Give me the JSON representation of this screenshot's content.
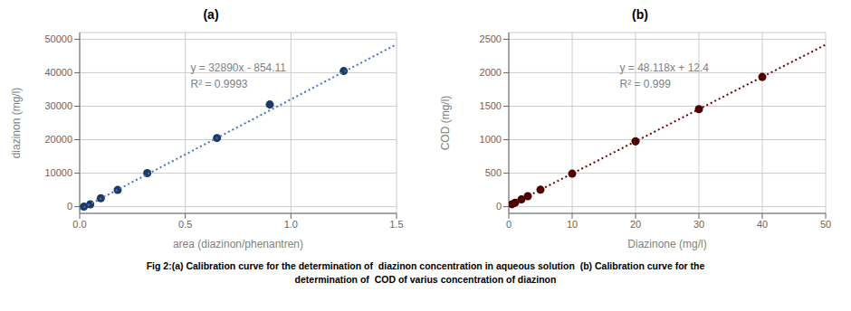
{
  "chart_data": [
    {
      "type": "scatter",
      "title": "(a)",
      "x_label": "area (diazinon/phenantren)",
      "y_label": "diazinon (mg/l)",
      "series": [
        {
          "type": "scatter",
          "color": "#1F3864",
          "marker": "circle",
          "x": [
            0.02,
            0.05,
            0.1,
            0.18,
            0.32,
            0.65,
            0.9,
            1.25
          ],
          "values": [
            0,
            700,
            2500,
            5000,
            10000,
            20500,
            30500,
            40500
          ]
        },
        {
          "type": "line",
          "line_style": "dotted",
          "color": "#4472C4",
          "x": [
            0,
            1.5
          ],
          "values": [
            -854.11,
            48480.89
          ]
        }
      ],
      "annotations": [
        "y = 32890x - 854.11",
        "R² = 0.9993"
      ],
      "xlim": [
        0,
        1.5
      ],
      "ylim": [
        -2000,
        52000
      ],
      "xticks": [
        {
          "value": 0,
          "label": "0.0"
        },
        0.5,
        {
          "value": 1,
          "label": "1.0"
        },
        1.5
      ],
      "yticks": [
        0,
        10000,
        20000,
        30000,
        40000,
        50000
      ],
      "grid": true
    },
    {
      "type": "scatter",
      "title": "(b)",
      "x_label": "Diazinone (mg/l)",
      "y_label": "COD (mg/l)",
      "series": [
        {
          "type": "scatter",
          "color": "#4B0000",
          "marker": "circle",
          "x": [
            0.5,
            1,
            2,
            3,
            5,
            10,
            20,
            30,
            40
          ],
          "values": [
            36,
            60,
            108,
            157,
            253,
            493,
            975,
            1456,
            1937
          ]
        },
        {
          "type": "line",
          "line_style": "dotted",
          "color": "#6B0000",
          "x": [
            0,
            50
          ],
          "values": [
            12.4,
            2418.3
          ]
        }
      ],
      "annotations": [
        "y = 48.118x + 12.4",
        "R² = 0.999"
      ],
      "xlim": [
        0,
        50
      ],
      "ylim": [
        -100,
        2600
      ],
      "xticks": [
        0,
        10,
        20,
        30,
        40,
        50
      ],
      "yticks": [
        0,
        500,
        1000,
        1500,
        2000,
        2500
      ],
      "grid": true
    }
  ],
  "caption": [
    "Fig 2:(a) Calibration curve for the determination of  diazinon concentration in aqueous solution  (b) Calibration curve for the",
    "determination of  COD of varius concentration of diazinon"
  ]
}
